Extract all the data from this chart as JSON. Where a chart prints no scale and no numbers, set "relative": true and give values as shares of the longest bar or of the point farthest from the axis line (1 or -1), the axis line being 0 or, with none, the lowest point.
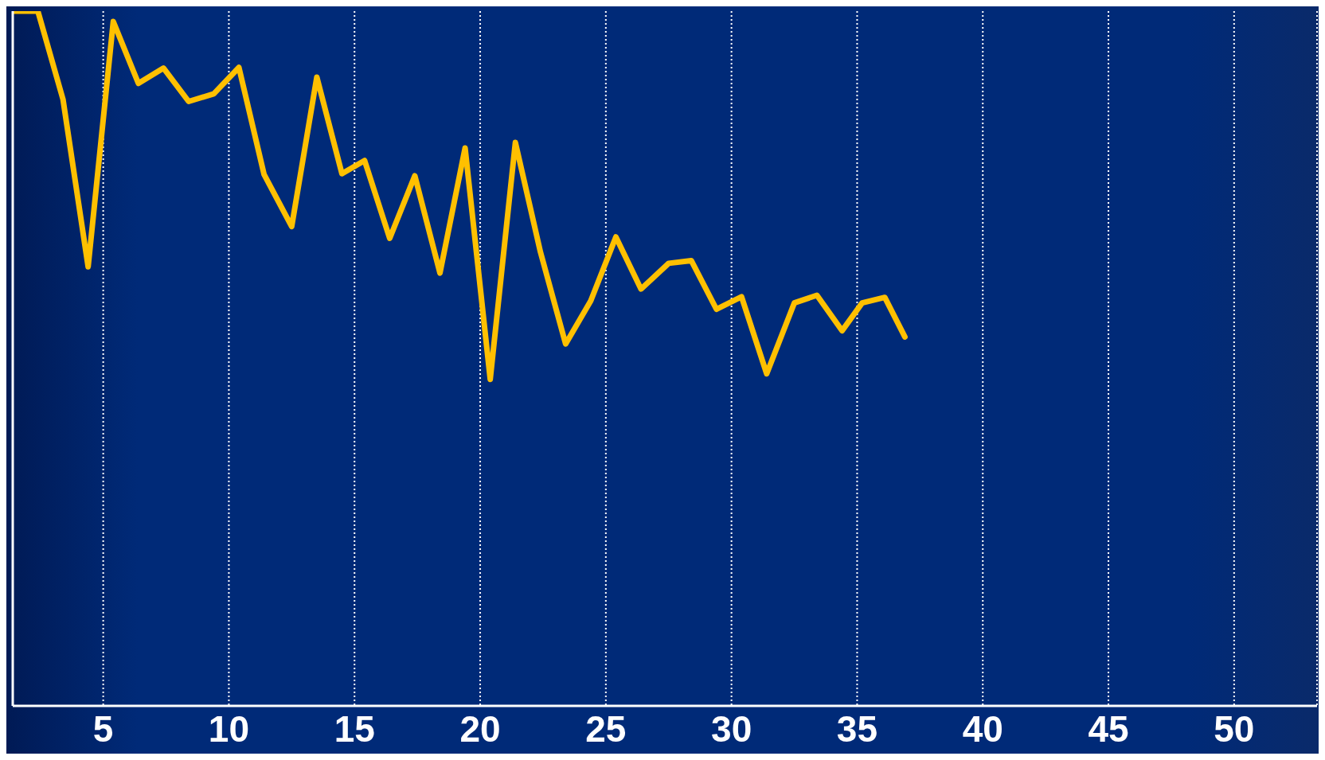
{
  "chart_data": {
    "type": "line",
    "relative": true,
    "color": "#ffc000",
    "grid": "x",
    "line_style": "solid",
    "marker": "none",
    "x": [
      1.4,
      2.4,
      3.4,
      4.4,
      5.4,
      6.4,
      7.4,
      8.4,
      9.4,
      10.4,
      11.4,
      12.5,
      13.5,
      14.5,
      15.4,
      16.4,
      17.4,
      18.4,
      19.4,
      20.4,
      21.4,
      22.4,
      23.4,
      24.4,
      25.4,
      26.4,
      27.5,
      28.4,
      29.4,
      30.4,
      31.4,
      32.5,
      33.4,
      34.4,
      35.2,
      36.1,
      36.9
    ],
    "values": [
      1.0,
      1.0,
      0.873,
      0.632,
      0.985,
      0.896,
      0.918,
      0.87,
      0.881,
      0.919,
      0.765,
      0.69,
      0.905,
      0.766,
      0.785,
      0.673,
      0.763,
      0.623,
      0.803,
      0.47,
      0.811,
      0.653,
      0.521,
      0.583,
      0.675,
      0.6,
      0.637,
      0.641,
      0.571,
      0.589,
      0.478,
      0.58,
      0.591,
      0.54,
      0.58,
      0.588,
      0.531
    ],
    "xlim": [
      1.4,
      53.3
    ],
    "xticks": [
      5,
      10,
      15,
      20,
      25,
      30,
      35,
      40,
      45,
      50
    ]
  }
}
